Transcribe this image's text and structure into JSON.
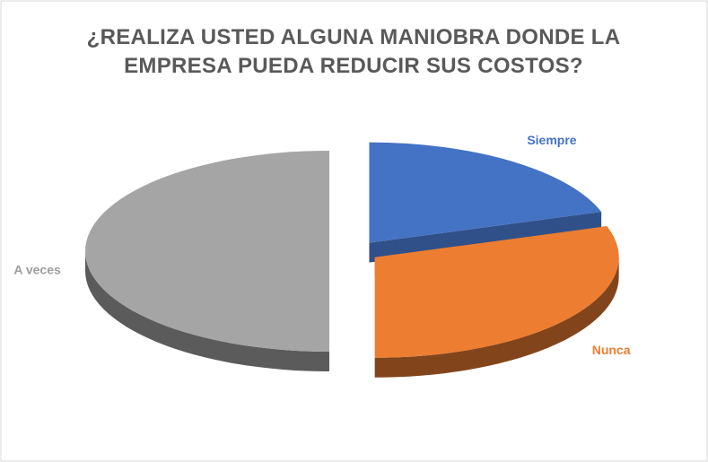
{
  "chart_data": {
    "type": "pie",
    "title": "¿REALIZA USTED ALGUNA MANIOBRA DONDE LA EMPRESA PUEDA REDUCIR SUS COSTOS?",
    "categories": [
      "Siempre",
      "Nunca",
      "A veces"
    ],
    "values": [
      20,
      30,
      50
    ],
    "colors": [
      "#4472c4",
      "#ed7d31",
      "#a5a5a5"
    ]
  }
}
